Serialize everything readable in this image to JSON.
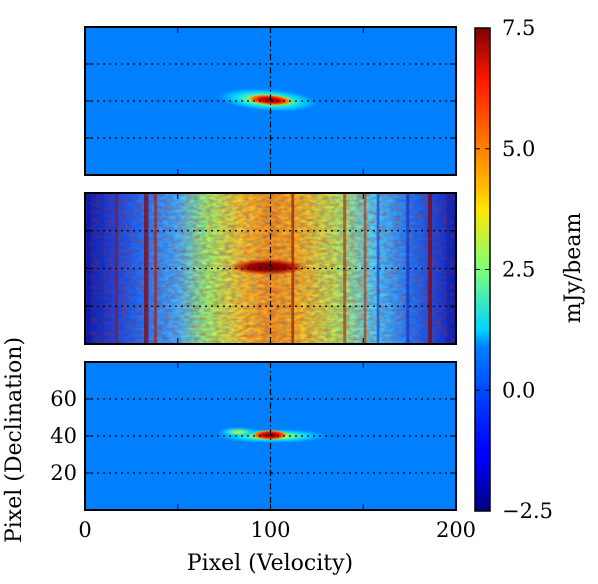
{
  "chart_data": {
    "type": "heatmap",
    "colormap": "jet",
    "panels": [
      {
        "name": "top",
        "x_range": [
          0,
          200
        ],
        "y_range": [
          0,
          80
        ],
        "background_value": 0.0,
        "feature": {
          "x_center": 100,
          "y_center": 40,
          "peak_value": 7.5,
          "core_x_halfwidth": 8,
          "core_y_halfwidth": 2,
          "halo_x_extent": [
            75,
            125
          ],
          "halo_y_halfwidth": 5
        }
      },
      {
        "name": "middle",
        "x_range": [
          0,
          200
        ],
        "y_range": [
          0,
          80
        ],
        "description_values": {
          "edge_value": -2.5,
          "center_value": 4.0,
          "peak_value": 7.5
        },
        "feature": {
          "x_center": 100,
          "y_center": 40
        }
      },
      {
        "name": "bottom",
        "x_range": [
          0,
          200
        ],
        "y_range": [
          0,
          80
        ],
        "background_value": 0.0,
        "feature": {
          "x_center": 100,
          "y_center": 40,
          "peak_value": 7.5,
          "halo_x_extent": [
            72,
            128
          ]
        }
      }
    ],
    "xlabel": "Pixel (Velocity)",
    "ylabel": "Pixel (Declination)",
    "x_ticks": [
      "0",
      "100",
      "200"
    ],
    "y_ticks": [
      "20",
      "40",
      "60"
    ],
    "grid": {
      "horizontal": [
        20,
        40,
        60
      ],
      "vertical": [
        100
      ],
      "style": "dotted"
    },
    "colorbar": {
      "label": "mJy/beam",
      "range": [
        -2.5,
        7.5
      ],
      "ticks": [
        "7.5",
        "5.0",
        "2.5",
        "0.0",
        "−2.5"
      ]
    }
  }
}
